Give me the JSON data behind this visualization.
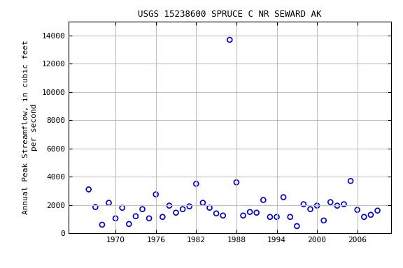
{
  "title": "USGS 15238600 SPRUCE C NR SEWARD AK",
  "ylabel": "Annual Peak Streamflow, in cubic feet\nper second",
  "xlabel": "",
  "years": [
    1966,
    1967,
    1968,
    1969,
    1970,
    1971,
    1972,
    1973,
    1974,
    1975,
    1976,
    1977,
    1978,
    1979,
    1980,
    1981,
    1982,
    1983,
    1984,
    1985,
    1986,
    1987,
    1988,
    1989,
    1990,
    1991,
    1992,
    1993,
    1994,
    1995,
    1996,
    1997,
    1998,
    1999,
    2000,
    2001,
    2002,
    2003,
    2004,
    2005,
    2006,
    2007,
    2008,
    2009
  ],
  "values": [
    3100,
    1850,
    600,
    2150,
    1050,
    1800,
    650,
    1200,
    1700,
    1050,
    2750,
    1150,
    1950,
    1450,
    1700,
    1900,
    3500,
    2150,
    1800,
    1400,
    1250,
    13700,
    3600,
    1250,
    1500,
    1450,
    2350,
    1150,
    1150,
    2550,
    1150,
    500,
    2050,
    1700,
    1950,
    900,
    2200,
    1950,
    2050,
    3700,
    1650,
    1150,
    1300,
    1600
  ],
  "marker_color": "#0000cc",
  "marker_facecolor": "none",
  "marker_size": 5,
  "marker_style": "o",
  "marker_linewidth": 1.2,
  "xlim": [
    1963,
    2011
  ],
  "ylim": [
    0,
    15000
  ],
  "yticks": [
    0,
    2000,
    4000,
    6000,
    8000,
    10000,
    12000,
    14000
  ],
  "xticks": [
    1970,
    1976,
    1982,
    1988,
    1994,
    2000,
    2006
  ],
  "grid_color": "#c0c0c0",
  "background_color": "#ffffff",
  "title_fontsize": 9,
  "label_fontsize": 8,
  "tick_fontsize": 8
}
